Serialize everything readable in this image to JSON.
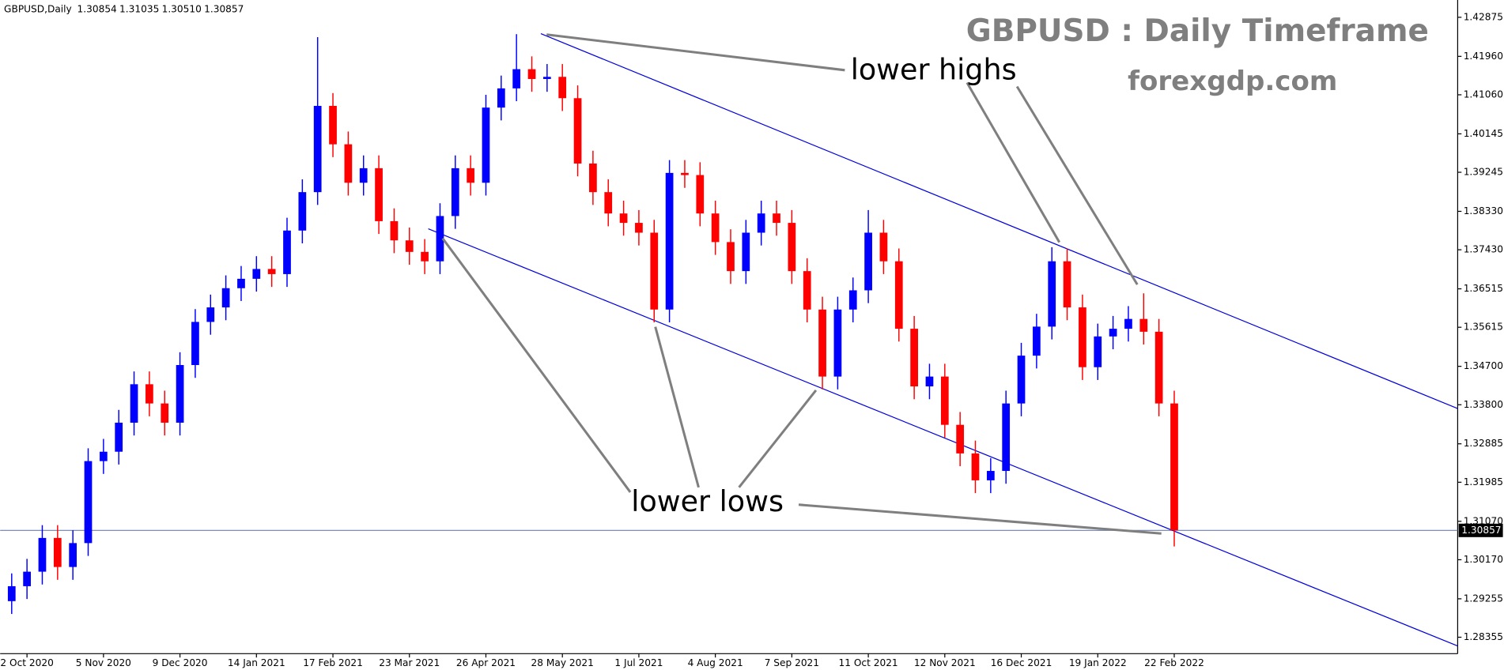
{
  "chart_data": {
    "type": "candlestick",
    "header": "GBPUSD,Daily",
    "header_values": [
      "1.30854",
      "1.31035",
      "1.30510",
      "1.30857"
    ],
    "title": "GBPUSD : Daily Timeframe",
    "subtitle": "forexgdp.com",
    "annotations": [
      "lower highs",
      "lower lows"
    ],
    "up_color": "#0000ff",
    "down_color": "#ff0000",
    "categories": [
      null,
      "2 Oct 2020",
      null,
      null,
      null,
      null,
      "5 Nov 2020",
      null,
      null,
      null,
      null,
      "9 Dec 2020",
      null,
      null,
      null,
      null,
      "14 Jan 2021",
      null,
      null,
      null,
      null,
      "17 Feb 2021",
      null,
      null,
      null,
      null,
      "23 Mar 2021",
      null,
      null,
      null,
      null,
      "26 Apr 2021",
      null,
      null,
      null,
      null,
      "28 May 2021",
      null,
      null,
      null,
      null,
      "1 Jul 2021",
      null,
      null,
      null,
      null,
      "4 Aug 2021",
      null,
      null,
      null,
      null,
      "7 Sep 2021",
      null,
      null,
      null,
      null,
      "11 Oct 2021",
      null,
      null,
      null,
      null,
      "12 Nov 2021",
      null,
      null,
      null,
      null,
      "16 Dec 2021",
      null,
      null,
      null,
      null,
      "19 Jan 2022",
      null,
      null,
      null,
      null,
      "22 Feb 2022"
    ],
    "open": [
      1.292,
      1.2955,
      1.2989,
      1.3068,
      1.3,
      1.3056,
      1.3248,
      1.327,
      1.3338,
      1.3428,
      1.3383,
      1.3338,
      1.3473,
      1.3574,
      1.3608,
      1.3653,
      1.3675,
      1.3698,
      1.3686,
      1.3788,
      1.3878,
      1.408,
      1.399,
      1.39,
      1.3934,
      1.381,
      1.3765,
      1.3738,
      1.3716,
      1.3822,
      1.3934,
      1.39,
      1.4076,
      1.4121,
      1.4166,
      1.4143,
      1.4148,
      1.4098,
      1.3945,
      1.3878,
      1.3828,
      1.3806,
      1.3783,
      1.3603,
      1.3923,
      1.3918,
      1.3828,
      1.3761,
      1.3693,
      1.3783,
      1.3828,
      1.3806,
      1.3693,
      1.3603,
      1.3446,
      1.3603,
      1.3648,
      1.3783,
      1.3716,
      1.3558,
      1.3423,
      1.3446,
      1.3333,
      1.3266,
      1.3203,
      1.3225,
      1.3383,
      1.3495,
      1.3563,
      1.3716,
      1.3608,
      1.3468,
      1.354,
      1.3558,
      1.3581,
      1.3551,
      1.3383
    ],
    "high": [
      1.2985,
      1.3019,
      1.3098,
      1.3098,
      1.3086,
      1.3278,
      1.33,
      1.3368,
      1.3458,
      1.3458,
      1.3413,
      1.3503,
      1.3604,
      1.3638,
      1.3683,
      1.3705,
      1.3728,
      1.3728,
      1.3818,
      1.3908,
      1.4241,
      1.411,
      1.402,
      1.3964,
      1.3964,
      1.384,
      1.3795,
      1.3768,
      1.3852,
      1.3964,
      1.3964,
      1.4106,
      1.4151,
      1.4248,
      1.4196,
      1.4178,
      1.4178,
      1.4128,
      1.3975,
      1.3908,
      1.3858,
      1.3836,
      1.3813,
      1.3953,
      1.3953,
      1.3948,
      1.3858,
      1.3791,
      1.3813,
      1.3858,
      1.3858,
      1.3836,
      1.3723,
      1.3633,
      1.3633,
      1.3678,
      1.3836,
      1.3813,
      1.3746,
      1.3588,
      1.3476,
      1.3476,
      1.3363,
      1.3296,
      1.3255,
      1.3413,
      1.3525,
      1.3593,
      1.3749,
      1.3746,
      1.3638,
      1.357,
      1.3588,
      1.3611,
      1.3641,
      1.3581,
      1.3413
    ],
    "low": [
      1.289,
      1.2925,
      1.2959,
      1.297,
      1.297,
      1.3026,
      1.3218,
      1.324,
      1.3308,
      1.3353,
      1.3308,
      1.3308,
      1.3443,
      1.3544,
      1.3578,
      1.3623,
      1.3645,
      1.3656,
      1.3656,
      1.3758,
      1.3848,
      1.396,
      1.387,
      1.387,
      1.378,
      1.3735,
      1.3708,
      1.3686,
      1.3686,
      1.3792,
      1.387,
      1.387,
      1.4046,
      1.4091,
      1.4113,
      1.4113,
      1.4068,
      1.3915,
      1.3848,
      1.3798,
      1.3776,
      1.3753,
      1.3573,
      1.3573,
      1.3888,
      1.3798,
      1.3731,
      1.3663,
      1.3663,
      1.3753,
      1.3776,
      1.3663,
      1.3573,
      1.3416,
      1.3416,
      1.3573,
      1.3618,
      1.3686,
      1.3528,
      1.3393,
      1.3393,
      1.3303,
      1.3236,
      1.3173,
      1.3173,
      1.3195,
      1.3353,
      1.3465,
      1.3533,
      1.3578,
      1.3438,
      1.3438,
      1.351,
      1.3528,
      1.3521,
      1.3353,
      1.3048
    ],
    "close": [
      1.2955,
      1.2989,
      1.3068,
      1.3,
      1.3056,
      1.3248,
      1.327,
      1.3338,
      1.3428,
      1.3383,
      1.3338,
      1.3473,
      1.3574,
      1.3608,
      1.3653,
      1.3675,
      1.3698,
      1.3686,
      1.3788,
      1.3878,
      1.408,
      1.399,
      1.39,
      1.3934,
      1.381,
      1.3765,
      1.3738,
      1.3716,
      1.3822,
      1.3934,
      1.39,
      1.4076,
      1.4121,
      1.4166,
      1.4143,
      1.4148,
      1.4098,
      1.3945,
      1.3878,
      1.3828,
      1.3806,
      1.3783,
      1.3603,
      1.3923,
      1.3918,
      1.3828,
      1.3761,
      1.3693,
      1.3783,
      1.3828,
      1.3806,
      1.3693,
      1.3603,
      1.3446,
      1.3603,
      1.3648,
      1.3783,
      1.3716,
      1.3558,
      1.3423,
      1.3446,
      1.3333,
      1.3266,
      1.3203,
      1.3225,
      1.3383,
      1.3495,
      1.3563,
      1.3716,
      1.3608,
      1.3468,
      1.354,
      1.3558,
      1.3581,
      1.3551,
      1.3383,
      1.3086
    ],
    "current_price": {
      "value": 1.30857,
      "label": "1.30857"
    },
    "ylim": [
      1.2797,
      1.4328
    ],
    "yticks": [
      1.42875,
      {
        "value": 1.4196,
        "label": "1.41960"
      },
      {
        "value": 1.4106,
        "label": "1.41060"
      },
      1.40145,
      1.39245,
      {
        "value": 1.3833,
        "label": "1.38330"
      },
      {
        "value": 1.3743,
        "label": "1.37430"
      },
      1.36515,
      1.35615,
      {
        "value": 1.347,
        "label": "1.34700"
      },
      {
        "value": 1.338,
        "label": "1.33800"
      },
      1.32885,
      1.31985,
      {
        "value": 1.3107,
        "label": "1.31070"
      },
      {
        "value": 1.3017,
        "label": "1.30170"
      },
      1.29255,
      1.28355
    ]
  }
}
